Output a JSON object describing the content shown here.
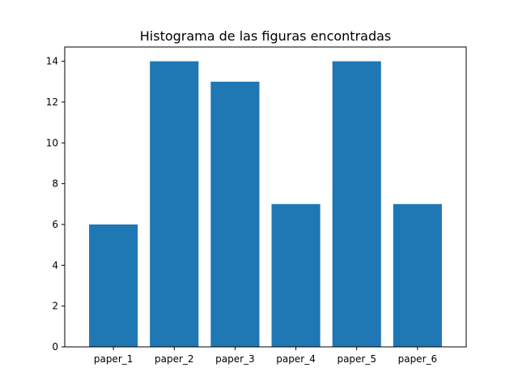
{
  "chart_data": {
    "type": "bar",
    "title": "Histograma de las figuras encontradas",
    "xlabel": "",
    "ylabel": "",
    "categories": [
      "paper_1",
      "paper_2",
      "paper_3",
      "paper_4",
      "paper_5",
      "paper_6"
    ],
    "values": [
      6,
      14,
      13,
      7,
      14,
      7
    ],
    "ylim": [
      0,
      14.7
    ],
    "yticks": [
      "0",
      "2",
      "4",
      "6",
      "8",
      "10",
      "12",
      "14"
    ],
    "grid": false,
    "legend": "none",
    "bar_color": "#1f77b4"
  }
}
